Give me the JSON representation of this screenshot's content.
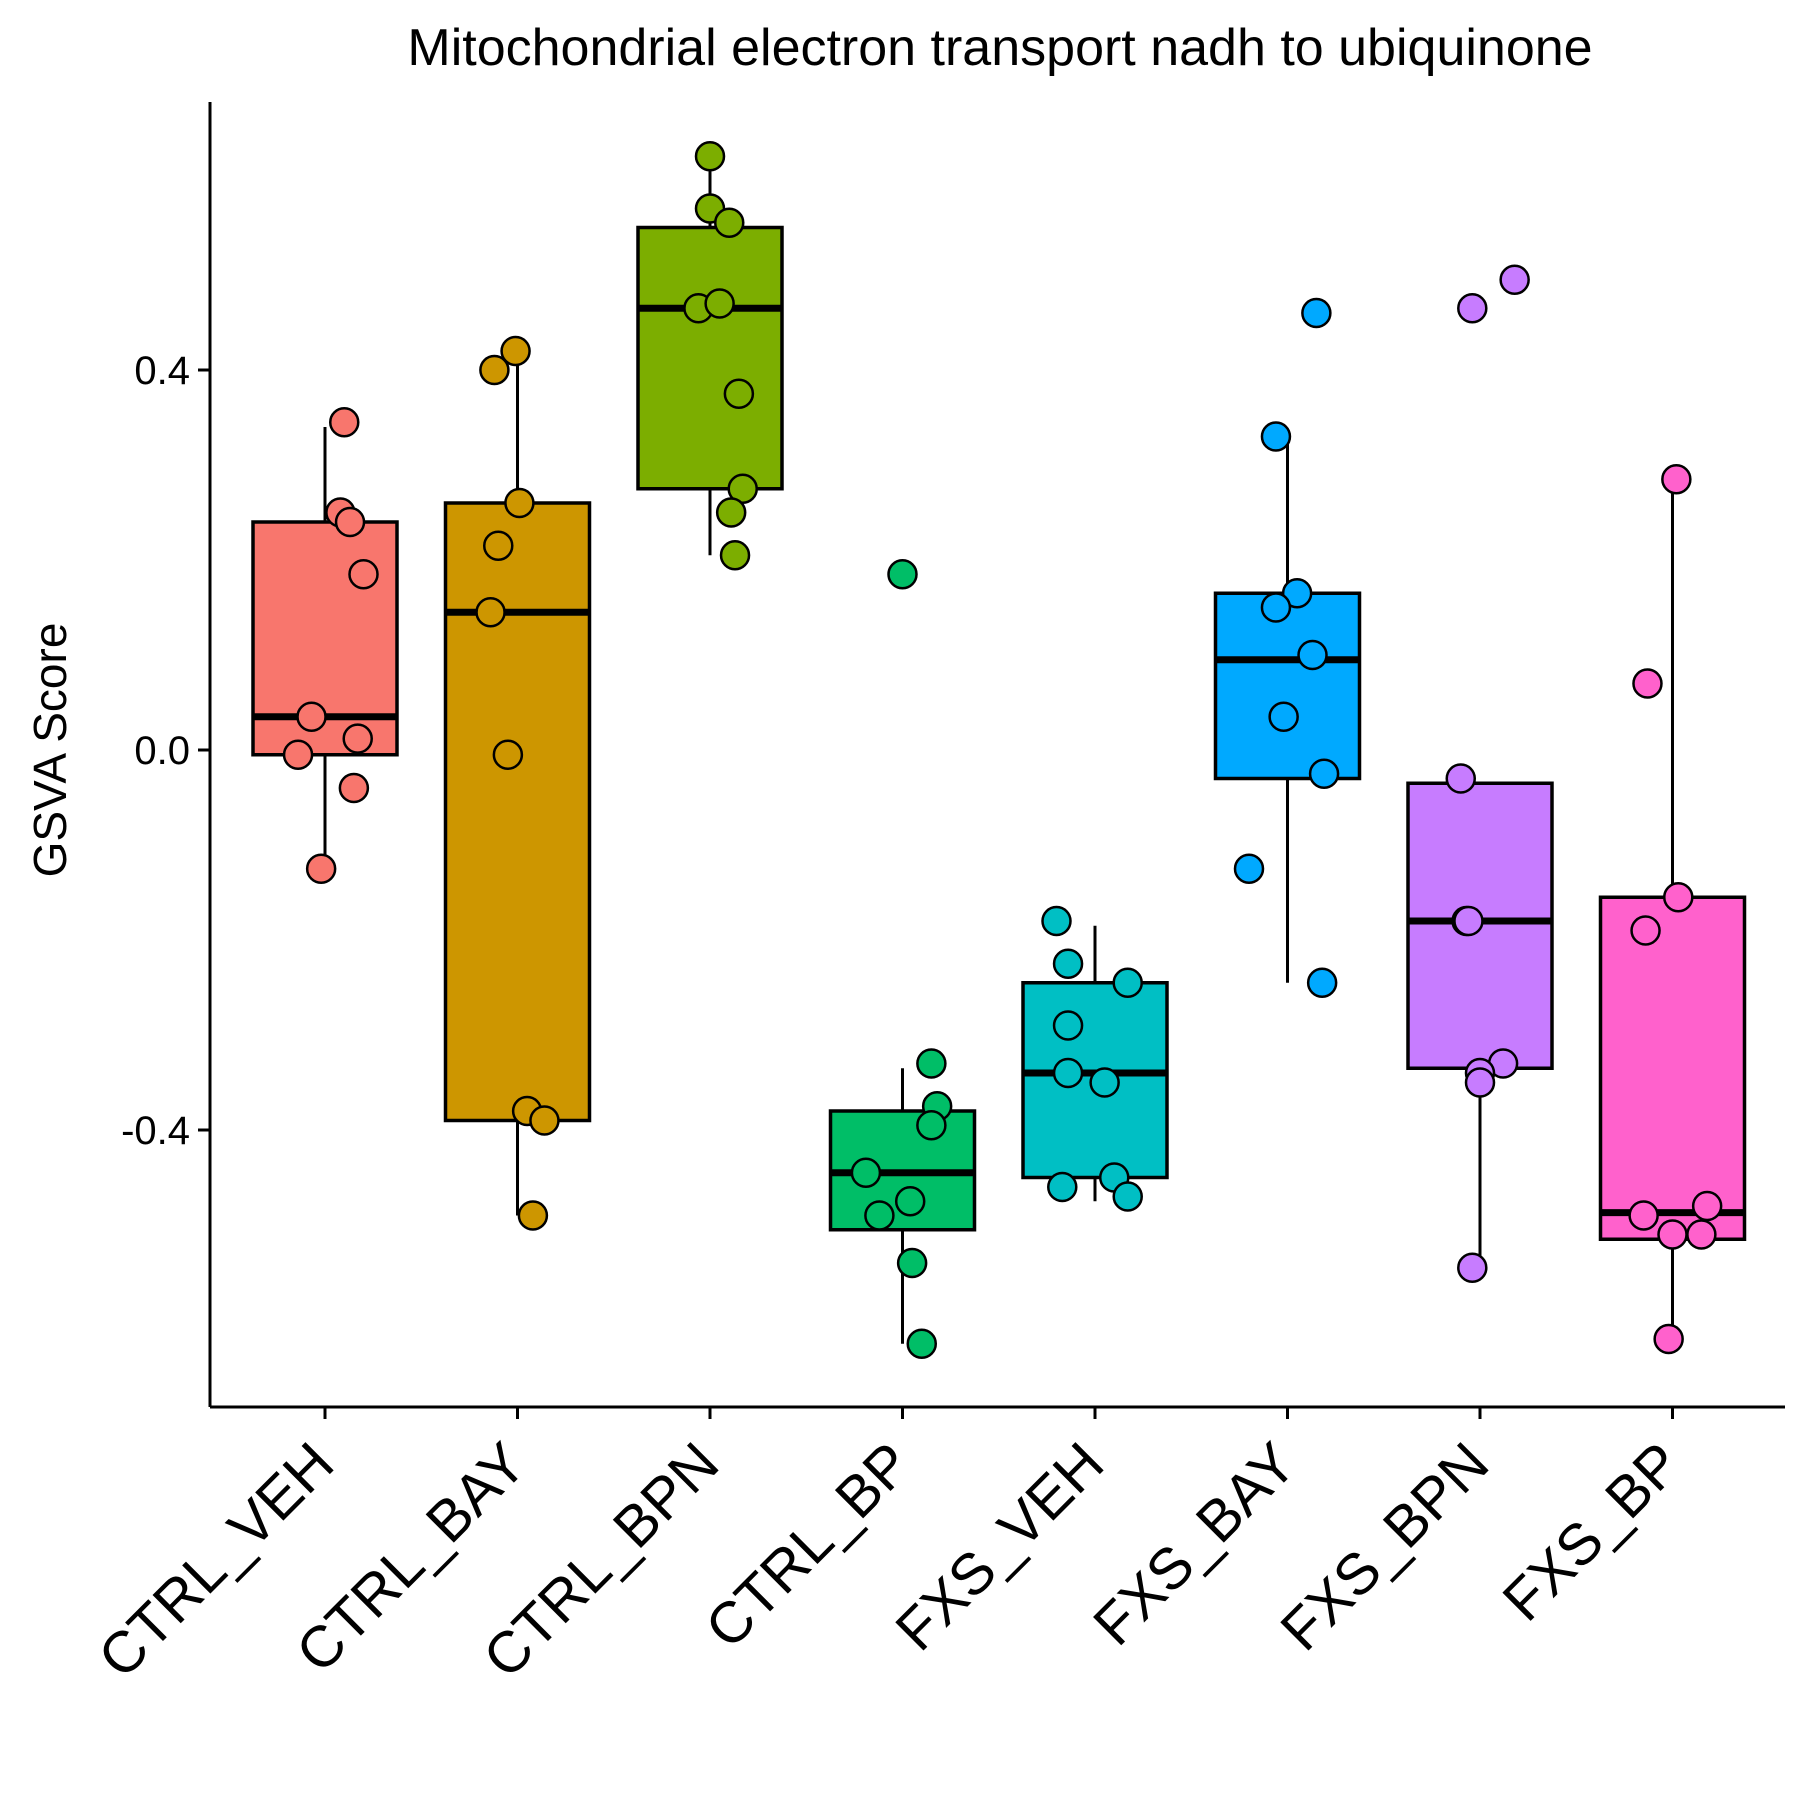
{
  "chart_data": {
    "type": "box",
    "title": "Mitochondrial electron transport nadh to ubiquinone",
    "xlabel": "",
    "ylabel": "GSVA Score",
    "ylim": [
      -0.7,
      0.68
    ],
    "yticks": [
      -0.4,
      0.0,
      0.4
    ],
    "ytick_labels": [
      "-0.4",
      "0.0",
      "0.4"
    ],
    "grid": false,
    "legend": "none",
    "categories": [
      "CTRL_VEH",
      "CTRL_BAY",
      "CTRL_BPN",
      "CTRL_BP",
      "FXS_VEH",
      "FXS_BAY",
      "FXS_BPN",
      "FXS_BP"
    ],
    "colors": [
      "#F8766D",
      "#CD9600",
      "#7CAE00",
      "#00BE67",
      "#00BFC4",
      "#00A9FF",
      "#C77CFF",
      "#FF61CC"
    ],
    "boxes": [
      {
        "q1": -0.005,
        "median": 0.035,
        "q3": 0.24,
        "whisker_low": -0.12,
        "whisker_high": 0.34
      },
      {
        "q1": -0.39,
        "median": 0.145,
        "q3": 0.26,
        "whisker_low": -0.49,
        "whisker_high": 0.42
      },
      {
        "q1": 0.275,
        "median": 0.465,
        "q3": 0.55,
        "whisker_low": 0.205,
        "whisker_high": 0.625
      },
      {
        "q1": -0.505,
        "median": -0.445,
        "q3": -0.38,
        "whisker_low": -0.625,
        "whisker_high": -0.335
      },
      {
        "q1": -0.45,
        "median": -0.34,
        "q3": -0.245,
        "whisker_low": -0.475,
        "whisker_high": -0.185
      },
      {
        "q1": -0.03,
        "median": 0.095,
        "q3": 0.165,
        "whisker_low": -0.245,
        "whisker_high": 0.33
      },
      {
        "q1": -0.335,
        "median": -0.18,
        "q3": -0.035,
        "whisker_low": -0.545,
        "whisker_high": -0.035
      },
      {
        "q1": -0.515,
        "median": -0.487,
        "q3": -0.155,
        "whisker_low": -0.625,
        "whisker_high": 0.285
      }
    ],
    "points": [
      [
        {
          "x": 0.1,
          "y": 0.345
        },
        {
          "x": 0.08,
          "y": 0.25
        },
        {
          "x": 0.13,
          "y": 0.24
        },
        {
          "x": 0.2,
          "y": 0.185
        },
        {
          "x": -0.07,
          "y": 0.035
        },
        {
          "x": 0.17,
          "y": 0.012
        },
        {
          "x": -0.14,
          "y": -0.005
        },
        {
          "x": 0.15,
          "y": -0.04
        },
        {
          "x": -0.02,
          "y": -0.125
        }
      ],
      [
        {
          "x": -0.12,
          "y": 0.4
        },
        {
          "x": -0.01,
          "y": 0.42
        },
        {
          "x": 0.01,
          "y": 0.26
        },
        {
          "x": -0.1,
          "y": 0.215
        },
        {
          "x": -0.14,
          "y": 0.145
        },
        {
          "x": -0.05,
          "y": -0.005
        },
        {
          "x": 0.05,
          "y": -0.38
        },
        {
          "x": 0.14,
          "y": -0.39
        },
        {
          "x": 0.08,
          "y": -0.49
        }
      ],
      [
        {
          "x": 0.0,
          "y": 0.625
        },
        {
          "x": 0.0,
          "y": 0.57
        },
        {
          "x": 0.1,
          "y": 0.555
        },
        {
          "x": -0.06,
          "y": 0.465
        },
        {
          "x": 0.05,
          "y": 0.47
        },
        {
          "x": 0.15,
          "y": 0.375
        },
        {
          "x": 0.17,
          "y": 0.275
        },
        {
          "x": 0.11,
          "y": 0.25
        },
        {
          "x": 0.13,
          "y": 0.205
        }
      ],
      [
        {
          "x": 0.0,
          "y": 0.185
        },
        {
          "x": 0.15,
          "y": -0.33
        },
        {
          "x": 0.18,
          "y": -0.375
        },
        {
          "x": 0.15,
          "y": -0.395
        },
        {
          "x": -0.19,
          "y": -0.445
        },
        {
          "x": 0.04,
          "y": -0.475
        },
        {
          "x": -0.12,
          "y": -0.49
        },
        {
          "x": 0.05,
          "y": -0.54
        },
        {
          "x": 0.1,
          "y": -0.625
        }
      ],
      [
        {
          "x": -0.2,
          "y": -0.18
        },
        {
          "x": -0.14,
          "y": -0.225
        },
        {
          "x": 0.17,
          "y": -0.245
        },
        {
          "x": -0.14,
          "y": -0.29
        },
        {
          "x": -0.14,
          "y": -0.34
        },
        {
          "x": 0.05,
          "y": -0.35
        },
        {
          "x": 0.1,
          "y": -0.45
        },
        {
          "x": -0.17,
          "y": -0.46
        },
        {
          "x": 0.17,
          "y": -0.47
        }
      ],
      [
        {
          "x": 0.15,
          "y": 0.46
        },
        {
          "x": -0.06,
          "y": 0.33
        },
        {
          "x": 0.05,
          "y": 0.165
        },
        {
          "x": -0.06,
          "y": 0.15
        },
        {
          "x": 0.13,
          "y": 0.1
        },
        {
          "x": -0.02,
          "y": 0.035
        },
        {
          "x": 0.19,
          "y": -0.025
        },
        {
          "x": -0.2,
          "y": -0.125
        },
        {
          "x": 0.18,
          "y": -0.245
        }
      ],
      [
        {
          "x": 0.18,
          "y": 0.495
        },
        {
          "x": -0.04,
          "y": 0.465
        },
        {
          "x": -0.1,
          "y": -0.03
        },
        {
          "x": -0.07,
          "y": -0.18
        },
        {
          "x": -0.06,
          "y": -0.18
        },
        {
          "x": 0.12,
          "y": -0.33
        },
        {
          "x": 0.0,
          "y": -0.34
        },
        {
          "x": 0.0,
          "y": -0.35
        },
        {
          "x": -0.04,
          "y": -0.545
        }
      ],
      [
        {
          "x": 0.02,
          "y": 0.285
        },
        {
          "x": -0.13,
          "y": 0.07
        },
        {
          "x": 0.03,
          "y": -0.155
        },
        {
          "x": -0.14,
          "y": -0.19
        },
        {
          "x": 0.18,
          "y": -0.48
        },
        {
          "x": -0.15,
          "y": -0.49
        },
        {
          "x": 0.0,
          "y": -0.51
        },
        {
          "x": 0.15,
          "y": -0.51
        },
        {
          "x": -0.02,
          "y": -0.62
        }
      ]
    ]
  }
}
